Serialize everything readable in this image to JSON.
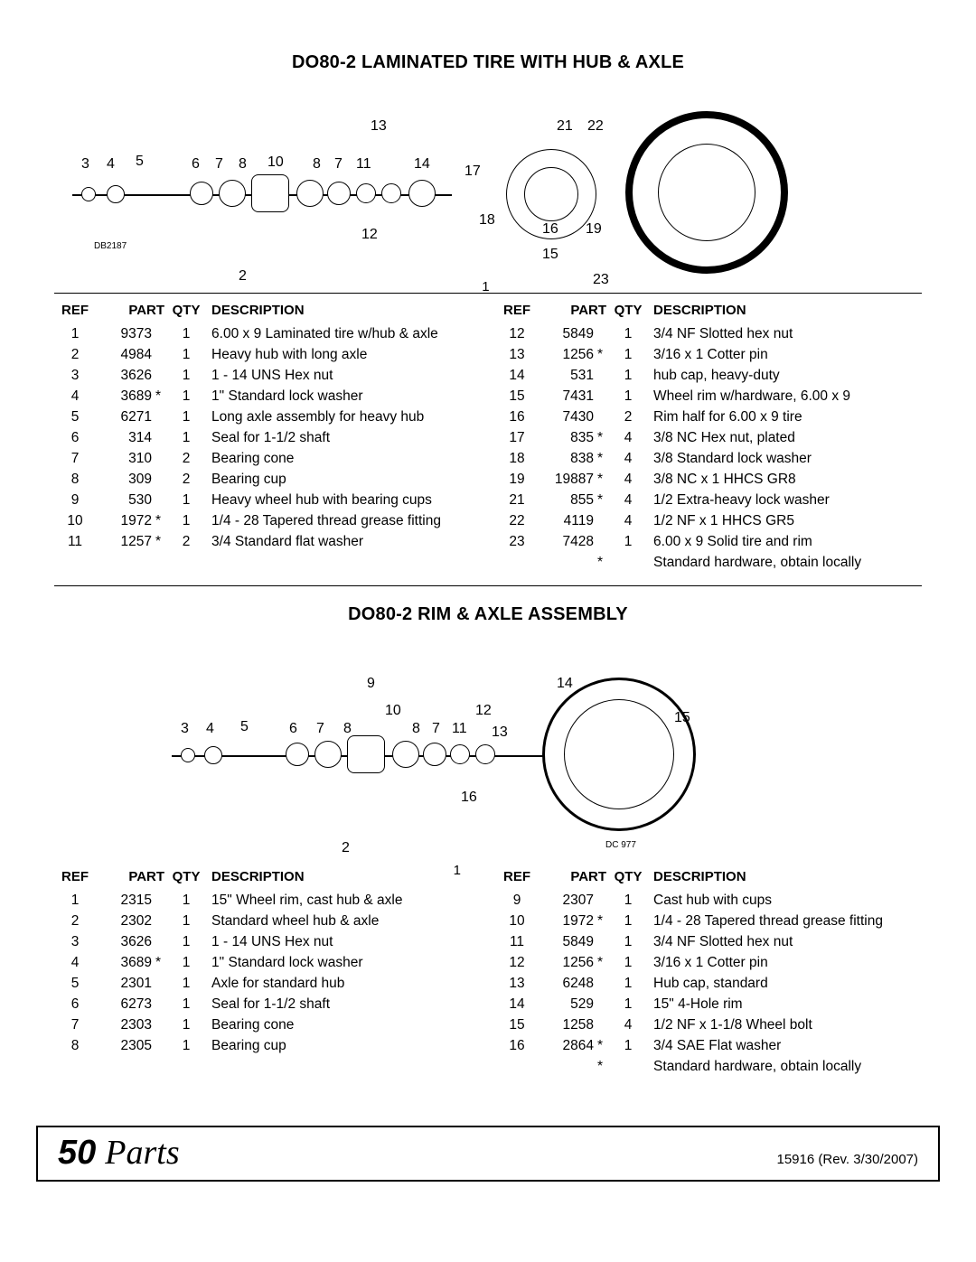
{
  "section1": {
    "title": "DO80-2 LAMINATED TIRE WITH HUB & AXLE",
    "diagram_labels": [
      "3",
      "4",
      "5",
      "6",
      "7",
      "8",
      "10",
      "8",
      "7",
      "11",
      "13",
      "14",
      "12",
      "2",
      "17",
      "18",
      "21",
      "22",
      "16",
      "19",
      "15",
      "23",
      "DB2187"
    ],
    "headers": {
      "ref": "REF",
      "part": "PART",
      "qty": "QTY",
      "desc": "DESCRIPTION"
    },
    "left_rows": [
      {
        "ref": "1",
        "part": "9373",
        "star": "",
        "qty": "1",
        "desc": "6.00 x 9 Laminated tire w/hub & axle"
      },
      {
        "ref": "2",
        "part": "4984",
        "star": "",
        "qty": "1",
        "desc": "Heavy hub with long axle"
      },
      {
        "ref": "3",
        "part": "3626",
        "star": "",
        "qty": "1",
        "desc": "1 - 14 UNS Hex nut"
      },
      {
        "ref": "4",
        "part": "3689",
        "star": "*",
        "qty": "1",
        "desc": "1\" Standard lock washer"
      },
      {
        "ref": "5",
        "part": "6271",
        "star": "",
        "qty": "1",
        "desc": "Long axle assembly for heavy hub"
      },
      {
        "ref": "6",
        "part": "314",
        "star": "",
        "qty": "1",
        "desc": "Seal for 1-1/2 shaft"
      },
      {
        "ref": "7",
        "part": "310",
        "star": "",
        "qty": "2",
        "desc": "Bearing cone"
      },
      {
        "ref": "8",
        "part": "309",
        "star": "",
        "qty": "2",
        "desc": "Bearing cup"
      },
      {
        "ref": "9",
        "part": "530",
        "star": "",
        "qty": "1",
        "desc": "Heavy wheel hub with bearing cups"
      },
      {
        "ref": "10",
        "part": "1972",
        "star": "*",
        "qty": "1",
        "desc": "1/4 - 28 Tapered thread grease fitting"
      },
      {
        "ref": "11",
        "part": "1257",
        "star": "*",
        "qty": "2",
        "desc": "3/4 Standard flat washer"
      }
    ],
    "right_rows": [
      {
        "ref": "12",
        "part": "5849",
        "star": "",
        "qty": "1",
        "desc": "3/4 NF Slotted hex nut"
      },
      {
        "ref": "13",
        "part": "1256",
        "star": "*",
        "qty": "1",
        "desc": "3/16 x 1 Cotter pin"
      },
      {
        "ref": "14",
        "part": "531",
        "star": "",
        "qty": "1",
        "desc": "hub cap, heavy-duty"
      },
      {
        "ref": "15",
        "part": "7431",
        "star": "",
        "qty": "1",
        "desc": "Wheel rim w/hardware, 6.00 x 9"
      },
      {
        "ref": "16",
        "part": "7430",
        "star": "",
        "qty": "2",
        "desc": "Rim half for 6.00 x 9 tire"
      },
      {
        "ref": "17",
        "part": "835",
        "star": "*",
        "qty": "4",
        "desc": "3/8 NC Hex nut, plated"
      },
      {
        "ref": "18",
        "part": "838",
        "star": "*",
        "qty": "4",
        "desc": "3/8 Standard lock washer"
      },
      {
        "ref": "19",
        "part": "19887",
        "star": "*",
        "qty": "4",
        "desc": "3/8 NC x 1 HHCS GR8"
      },
      {
        "ref": "21",
        "part": "855",
        "star": "*",
        "qty": "4",
        "desc": "1/2 Extra-heavy lock washer"
      },
      {
        "ref": "22",
        "part": "4119",
        "star": "",
        "qty": "4",
        "desc": "1/2 NF x 1 HHCS GR5"
      },
      {
        "ref": "23",
        "part": "7428",
        "star": "",
        "qty": "1",
        "desc": "6.00 x 9 Solid tire and rim"
      },
      {
        "ref": "",
        "part": "",
        "star": "*",
        "qty": "",
        "desc": "Standard hardware, obtain locally"
      }
    ]
  },
  "section2": {
    "title": "DO80-2 RIM & AXLE ASSEMBLY",
    "diagram_labels": [
      "3",
      "4",
      "5",
      "6",
      "7",
      "8",
      "9",
      "10",
      "8",
      "7",
      "11",
      "12",
      "13",
      "14",
      "15",
      "16",
      "2",
      "DC 977"
    ],
    "headers": {
      "ref": "REF",
      "part": "PART",
      "qty": "QTY",
      "desc": "DESCRIPTION"
    },
    "left_rows": [
      {
        "ref": "1",
        "part": "2315",
        "star": "",
        "qty": "1",
        "desc": "15\" Wheel rim, cast hub & axle"
      },
      {
        "ref": "2",
        "part": "2302",
        "star": "",
        "qty": "1",
        "desc": "Standard wheel hub & axle"
      },
      {
        "ref": "3",
        "part": "3626",
        "star": "",
        "qty": "1",
        "desc": "1 - 14 UNS Hex nut"
      },
      {
        "ref": "4",
        "part": "3689",
        "star": "*",
        "qty": "1",
        "desc": "1\" Standard lock washer"
      },
      {
        "ref": "5",
        "part": "2301",
        "star": "",
        "qty": "1",
        "desc": "Axle for standard hub"
      },
      {
        "ref": "6",
        "part": "6273",
        "star": "",
        "qty": "1",
        "desc": "Seal for 1-1/2 shaft"
      },
      {
        "ref": "7",
        "part": "2303",
        "star": "",
        "qty": "1",
        "desc": "Bearing cone"
      },
      {
        "ref": "8",
        "part": "2305",
        "star": "",
        "qty": "1",
        "desc": "Bearing cup"
      }
    ],
    "right_rows": [
      {
        "ref": "9",
        "part": "2307",
        "star": "",
        "qty": "1",
        "desc": "Cast hub with cups"
      },
      {
        "ref": "10",
        "part": "1972",
        "star": "*",
        "qty": "1",
        "desc": "1/4 - 28 Tapered thread grease fitting"
      },
      {
        "ref": "11",
        "part": "5849",
        "star": "",
        "qty": "1",
        "desc": "3/4 NF Slotted hex nut"
      },
      {
        "ref": "12",
        "part": "1256",
        "star": "*",
        "qty": "1",
        "desc": "3/16 x 1 Cotter pin"
      },
      {
        "ref": "13",
        "part": "6248",
        "star": "",
        "qty": "1",
        "desc": "Hub cap, standard"
      },
      {
        "ref": "14",
        "part": "529",
        "star": "",
        "qty": "1",
        "desc": "15\" 4-Hole rim"
      },
      {
        "ref": "15",
        "part": "1258",
        "star": "",
        "qty": "4",
        "desc": "1/2 NF x 1-1/8 Wheel bolt"
      },
      {
        "ref": "16",
        "part": "2864",
        "star": "*",
        "qty": "1",
        "desc": "3/4 SAE Flat washer"
      },
      {
        "ref": "",
        "part": "",
        "star": "*",
        "qty": "",
        "desc": "Standard hardware, obtain locally"
      }
    ]
  },
  "footer": {
    "page_num": "50",
    "page_label": "Parts",
    "doc_id": "15916",
    "rev": "(Rev. 3/30/2007)"
  },
  "one_marker": "1"
}
